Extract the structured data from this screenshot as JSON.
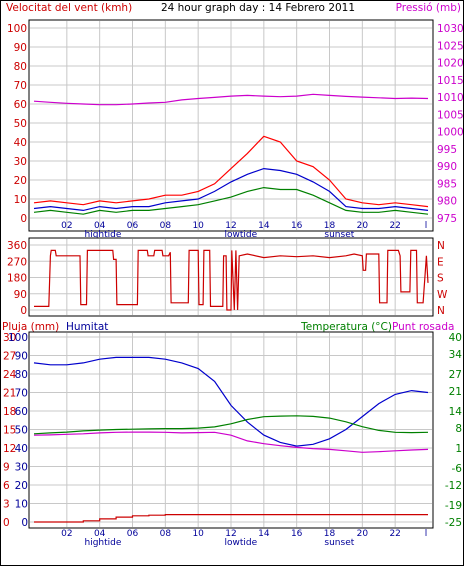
{
  "header": {
    "title": "24 hour graph day : 14 Febrero 2011",
    "left_label": "Velocitat del vent (kmh)",
    "right_label": "Pressió (mb)"
  },
  "colors": {
    "background": "#ffffff",
    "grid": "#c8c8c8",
    "wind_red": "#ff0000",
    "wind_blue": "#0000cc",
    "wind_green": "#008000",
    "pressure": "#cc00cc",
    "direction": "#cc0000",
    "humidity": "#0000cc",
    "temperature": "#008000",
    "dewpoint": "#cc00cc",
    "rain": "#cc0000",
    "axis_text_red": "#cc0000",
    "axis_text_magenta": "#cc00cc",
    "axis_text_green": "#008000",
    "axis_text_blue": "#000099"
  },
  "x_axis": {
    "tick_labels": [
      "02",
      "04",
      "06",
      "08",
      "10",
      "12",
      "14",
      "16",
      "18",
      "20",
      "22"
    ],
    "tick_hours": [
      2,
      4,
      6,
      8,
      10,
      12,
      14,
      16,
      18,
      20,
      22
    ],
    "range": [
      0,
      24
    ],
    "marker": {
      "hour": 24,
      "label": "l"
    },
    "events": [
      {
        "hour": 4.2,
        "label": "hightide"
      },
      {
        "hour": 12.6,
        "label": "lowtide"
      },
      {
        "hour": 18.6,
        "label": "sunset"
      }
    ]
  },
  "chart_data": [
    {
      "id": "wind-pressure",
      "type": "line",
      "title": "24 hour graph day : 14 Febrero 2011",
      "ylabel": "Velocitat del vent (kmh)",
      "ylim": [
        0,
        100
      ],
      "y_ticks": [
        0,
        10,
        20,
        30,
        40,
        50,
        60,
        70,
        80,
        90,
        100
      ],
      "y2label": "Pressió (mb)",
      "y2lim": [
        975,
        1030
      ],
      "y2_ticks": [
        975,
        980,
        985,
        990,
        995,
        1000,
        1005,
        1010,
        1015,
        1020,
        1025,
        1030
      ],
      "grid": true,
      "x": [
        0,
        1,
        2,
        3,
        4,
        5,
        6,
        7,
        8,
        9,
        10,
        11,
        12,
        13,
        14,
        15,
        16,
        17,
        18,
        19,
        20,
        21,
        22,
        23,
        24
      ],
      "series": [
        {
          "role": "gust",
          "axis": "left",
          "color": "#ff0000",
          "values": [
            8,
            9,
            8,
            7,
            9,
            8,
            9,
            10,
            12,
            12,
            14,
            18,
            26,
            34,
            43,
            40,
            30,
            27,
            20,
            10,
            8,
            7,
            8,
            7,
            6
          ]
        },
        {
          "role": "average",
          "axis": "left",
          "color": "#0000cc",
          "values": [
            5,
            6,
            5,
            4,
            6,
            5,
            6,
            6,
            8,
            9,
            10,
            14,
            19,
            23,
            26,
            25,
            23,
            19,
            14,
            6,
            5,
            5,
            6,
            5,
            4
          ]
        },
        {
          "role": "lull",
          "axis": "left",
          "color": "#008000",
          "values": [
            3,
            4,
            3,
            2,
            4,
            3,
            4,
            4,
            5,
            6,
            7,
            9,
            11,
            14,
            16,
            15,
            15,
            12,
            8,
            4,
            3,
            3,
            4,
            3,
            2
          ]
        },
        {
          "role": "pressure",
          "axis": "right",
          "color": "#cc00cc",
          "values": [
            1008.8,
            1008.5,
            1008.2,
            1008.0,
            1007.8,
            1007.8,
            1008.0,
            1008.3,
            1008.5,
            1009.2,
            1009.6,
            1009.9,
            1010.3,
            1010.5,
            1010.3,
            1010.1,
            1010.3,
            1010.8,
            1010.5,
            1010.2,
            1010.0,
            1009.8,
            1009.6,
            1009.7,
            1009.6
          ]
        }
      ]
    },
    {
      "id": "wind-direction",
      "type": "line",
      "ylim": [
        0,
        360
      ],
      "y_ticks": [
        0,
        90,
        180,
        270,
        360
      ],
      "y2_labels": [
        "N",
        "E",
        "S",
        "W",
        "N"
      ],
      "grid": true,
      "x": [
        0,
        0.9,
        1.0,
        1.05,
        1.3,
        1.35,
        2.8,
        2.85,
        3.2,
        3.25,
        4.8,
        4.85,
        5.0,
        5.05,
        6.3,
        6.35,
        6.9,
        6.95,
        7.3,
        7.35,
        7.8,
        7.85,
        8.2,
        8.3,
        8.35,
        9.4,
        9.45,
        10.0,
        10.05,
        10.3,
        10.35,
        10.7,
        10.75,
        11.5,
        11.55,
        11.7,
        11.75,
        12.0,
        12.05,
        12.2,
        12.3,
        12.4,
        12.5,
        13.0,
        14.0,
        15.0,
        16.0,
        17.0,
        18.0,
        19.0,
        19.5,
        20.0,
        20.05,
        20.2,
        20.25,
        21.0,
        21.05,
        21.5,
        21.55,
        22.2,
        22.3,
        22.35,
        22.9,
        22.95,
        23.3,
        23.35,
        23.7,
        23.9,
        24.0
      ],
      "series": [
        {
          "role": "direction",
          "color": "#cc0000",
          "values": [
            20,
            20,
            300,
            330,
            330,
            300,
            300,
            30,
            30,
            330,
            330,
            280,
            280,
            30,
            30,
            330,
            330,
            300,
            300,
            330,
            330,
            300,
            300,
            320,
            40,
            40,
            330,
            330,
            30,
            30,
            330,
            330,
            20,
            20,
            300,
            300,
            0,
            0,
            330,
            0,
            330,
            0,
            300,
            310,
            290,
            300,
            295,
            300,
            290,
            300,
            310,
            300,
            220,
            220,
            310,
            310,
            40,
            40,
            330,
            330,
            300,
            100,
            100,
            330,
            330,
            40,
            40,
            300,
            150
          ]
        }
      ]
    },
    {
      "id": "humidity-temperature",
      "type": "line",
      "left_labels": {
        "rain": "Pluja (mm)",
        "humidity": "Humitat"
      },
      "right_label": "Temperatura (°C)",
      "right_label_2": "Punt rosada",
      "ylim_rain": [
        0,
        30
      ],
      "rain_ticks": [
        0,
        3,
        6,
        9,
        12,
        15,
        18,
        21,
        24,
        27,
        30
      ],
      "ylim_humidity": [
        0,
        100
      ],
      "humidity_ticks": [
        0,
        10,
        20,
        30,
        40,
        50,
        60,
        70,
        80,
        90,
        100
      ],
      "ylim_temperature": [
        -25,
        40
      ],
      "temperature_ticks": [
        -25,
        -19,
        -12,
        -6,
        1,
        8,
        14,
        21,
        27,
        34,
        40
      ],
      "grid": true,
      "x": [
        0,
        1,
        2,
        3,
        4,
        5,
        6,
        7,
        8,
        9,
        10,
        11,
        12,
        13,
        14,
        15,
        16,
        17,
        18,
        19,
        20,
        21,
        22,
        23,
        24
      ],
      "series": [
        {
          "role": "humidity",
          "axis": "humidity",
          "color": "#0000cc",
          "values": [
            86,
            85,
            85,
            86,
            88,
            89,
            89,
            89,
            88,
            86,
            83,
            76,
            63,
            54,
            47,
            43,
            41,
            42,
            45,
            50,
            57,
            64,
            69,
            71,
            70
          ]
        },
        {
          "role": "temperature",
          "axis": "temperature",
          "color": "#008000",
          "values": [
            6.0,
            6.3,
            6.6,
            7.0,
            7.3,
            7.5,
            7.6,
            7.7,
            7.8,
            7.8,
            8.0,
            8.4,
            9.5,
            11.0,
            12.0,
            12.2,
            12.3,
            12.1,
            11.5,
            10.2,
            8.5,
            7.2,
            6.5,
            6.4,
            6.5
          ]
        },
        {
          "role": "dewpoint",
          "axis": "temperature",
          "color": "#cc00cc",
          "values": [
            5.5,
            5.6,
            5.8,
            6.0,
            6.3,
            6.5,
            6.6,
            6.6,
            6.5,
            6.3,
            6.4,
            6.5,
            5.5,
            3.5,
            2.5,
            1.8,
            1.2,
            0.8,
            0.5,
            0.0,
            -0.5,
            -0.3,
            0.0,
            0.3,
            0.5
          ]
        },
        {
          "role": "rain",
          "axis": "rain",
          "color": "#cc0000",
          "values": [
            0,
            0,
            0,
            0.2,
            0.5,
            0.8,
            1.0,
            1.1,
            1.2,
            1.2,
            1.2,
            1.2,
            1.2,
            1.2,
            1.2,
            1.2,
            1.2,
            1.2,
            1.2,
            1.2,
            1.2,
            1.2,
            1.2,
            1.2,
            1.2
          ]
        }
      ]
    }
  ]
}
